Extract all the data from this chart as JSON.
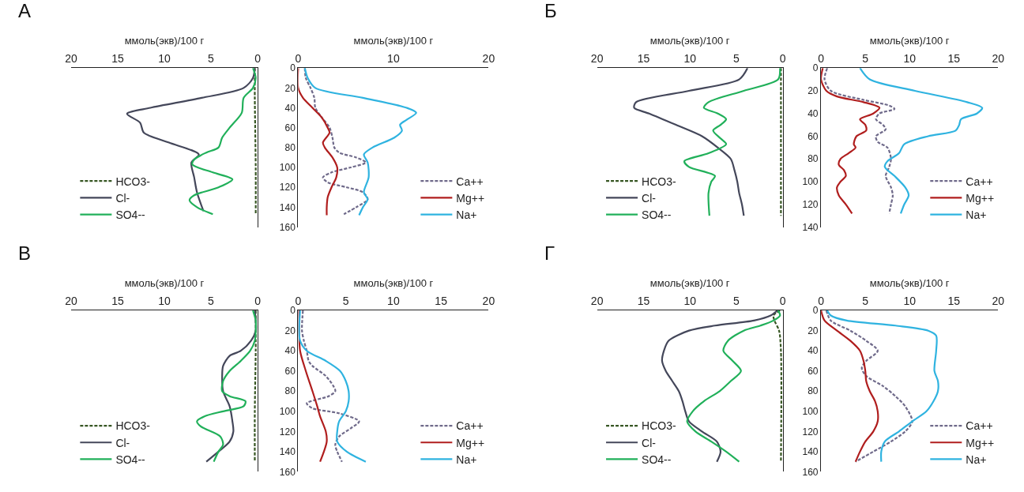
{
  "chart_data": [
    {
      "type": "line",
      "title": "А",
      "xlabel": "ммоль(экв)/100 г",
      "xlim": [
        20,
        0
      ],
      "xticks": [
        20,
        15,
        10,
        5,
        0
      ],
      "ylim": [
        160,
        0
      ],
      "yticks": [
        0,
        20,
        40,
        60,
        80,
        100,
        120,
        140,
        160
      ],
      "tick_labels": "x",
      "legend": "bottom left",
      "series": [
        {
          "name": "HCO3-",
          "color": "#375623",
          "line_style": "dashed",
          "x": [
            0.3,
            0.3,
            0.2,
            0.2
          ],
          "values": [
            0,
            30,
            100,
            147
          ]
        },
        {
          "name": "Cl-",
          "color": "#44475a",
          "line_style": "solid",
          "x": [
            0.3,
            0.5,
            1.5,
            6,
            11.5,
            14,
            12.6,
            12.2,
            9.5,
            6.3,
            7.1,
            6.8,
            6.5,
            5.8
          ],
          "values": [
            0,
            10,
            20,
            30,
            40,
            46,
            55,
            65,
            75,
            87,
            95,
            110,
            125,
            144
          ]
        },
        {
          "name": "SO4--",
          "color": "#21b05a",
          "line_style": "solid",
          "x": [
            0.5,
            0.2,
            0.5,
            1.5,
            1.7,
            3,
            3.8,
            4.2,
            5.5,
            6.8,
            7.0,
            4.8,
            2.7,
            4.2,
            6.8,
            7.3,
            6.5,
            4.8
          ],
          "values": [
            0,
            10,
            20,
            30,
            45,
            60,
            70,
            80,
            85,
            92,
            97,
            105,
            112,
            120,
            128,
            133,
            140,
            147
          ]
        }
      ]
    },
    {
      "type": "line",
      "xlabel": "ммоль(экв)/100 г",
      "xlim": [
        0,
        20
      ],
      "xticks": [
        0,
        10,
        20
      ],
      "ylim": [
        160,
        0
      ],
      "yticks": [
        0,
        20,
        40,
        60,
        80,
        100,
        120,
        140,
        160
      ],
      "legend": "bottom right",
      "series": [
        {
          "name": "Ca++",
          "color": "#6f6a8a",
          "line_style": "dashed",
          "x": [
            0.7,
            0.8,
            1.3,
            1.7,
            1.8,
            2.5,
            3.3,
            3.6,
            3.8,
            4.3,
            6.1,
            7.1,
            5.5,
            3.5,
            2.6,
            3.1,
            5.1,
            6.8,
            7.3,
            6.1,
            4.8
          ],
          "values": [
            0,
            10,
            20,
            30,
            40,
            50,
            60,
            70,
            80,
            85,
            90,
            95,
            100,
            105,
            110,
            115,
            120,
            125,
            132,
            140,
            147
          ]
        },
        {
          "name": "Mg++",
          "color": "#b01e1e",
          "line_style": "solid",
          "x": [
            0,
            0,
            0.5,
            1.5,
            2.5,
            3.1,
            3.3,
            2.6,
            2.8,
            3.6,
            4.1,
            4.0,
            3.5,
            3.1,
            3.0,
            3.0
          ],
          "values": [
            0,
            20,
            30,
            40,
            50,
            60,
            65,
            75,
            80,
            90,
            100,
            110,
            120,
            130,
            140,
            148
          ]
        },
        {
          "name": "Na+",
          "color": "#2fb3e0",
          "line_style": "solid",
          "x": [
            0.7,
            1.0,
            1.8,
            6.8,
            11.4,
            12.4,
            11.4,
            10.7,
            10.9,
            10.1,
            7.8,
            6.9,
            7.3,
            7.4,
            6.9,
            7.3,
            6.8,
            6.4
          ],
          "values": [
            0,
            10,
            20,
            30,
            40,
            45,
            52,
            57,
            63,
            70,
            80,
            87,
            95,
            110,
            125,
            132,
            140,
            148
          ]
        }
      ]
    },
    {
      "type": "line",
      "title": "Б",
      "xlabel": "ммоль(экв)/100 г",
      "xlim": [
        20,
        0
      ],
      "xticks": [
        20,
        15,
        10,
        5,
        0
      ],
      "ylim": [
        140,
        0
      ],
      "yticks": [
        0,
        20,
        40,
        60,
        80,
        100,
        120,
        140
      ],
      "tick_labels": "x",
      "legend": "bottom left",
      "series": [
        {
          "name": "HCO3-",
          "color": "#375623",
          "line_style": "dashed",
          "x": [
            0.2,
            0.2,
            0.2
          ],
          "values": [
            0,
            60,
            130
          ]
        },
        {
          "name": "Cl-",
          "color": "#44475a",
          "line_style": "solid",
          "x": [
            3.8,
            4.7,
            10.1,
            15.8,
            16,
            14.4,
            11.5,
            8.7,
            7.0,
            5.6,
            5.2,
            4.9,
            4.7,
            4.4,
            4.2
          ],
          "values": [
            0,
            10,
            20,
            30,
            35,
            40,
            50,
            60,
            70,
            80,
            90,
            100,
            110,
            120,
            130
          ]
        },
        {
          "name": "SO4--",
          "color": "#21b05a",
          "line_style": "solid",
          "x": [
            0.3,
            0.5,
            4.2,
            8.0,
            8.5,
            7.0,
            6.1,
            6.7,
            7.5,
            6.7,
            6.1,
            8.0,
            10.6,
            10.1,
            7.3,
            7.7,
            8.0,
            7.9
          ],
          "values": [
            0,
            10,
            20,
            30,
            35,
            40,
            45,
            50,
            55,
            62,
            67,
            75,
            82,
            87,
            95,
            100,
            110,
            130
          ]
        }
      ]
    },
    {
      "type": "line",
      "xlabel": "ммоль(экв)/100 г",
      "xlim": [
        0,
        20
      ],
      "xticks": [
        0,
        5,
        10,
        15,
        20
      ],
      "ylim": [
        140,
        0
      ],
      "yticks": [
        0,
        20,
        40,
        60,
        80,
        100,
        120,
        140
      ],
      "legend": "bottom right",
      "series": [
        {
          "name": "Ca++",
          "color": "#6f6a8a",
          "line_style": "dashed",
          "x": [
            0.7,
            0.4,
            1.1,
            4.8,
            7.7,
            8.3,
            6.6,
            6.2,
            7.0,
            7.3,
            6.2,
            6.4,
            7.5,
            7.9,
            7.7,
            7.3,
            7.9,
            8.1,
            7.9,
            7.7
          ],
          "values": [
            0,
            10,
            20,
            28,
            33,
            36,
            40,
            45,
            50,
            54,
            60,
            65,
            70,
            80,
            87,
            95,
            105,
            112,
            120,
            128
          ]
        },
        {
          "name": "Mg++",
          "color": "#b01e1e",
          "line_style": "solid",
          "x": [
            0.2,
            0,
            0.6,
            1.8,
            4.8,
            6.6,
            5.9,
            4.4,
            5.0,
            5.1,
            4.0,
            3.7,
            3.9,
            3.1,
            2.2,
            2.0,
            2.6,
            2.8,
            2.2,
            1.8,
            2.0,
            2.8,
            3.5
          ],
          "values": [
            0,
            10,
            20,
            25,
            30,
            35,
            40,
            45,
            50,
            55,
            60,
            67,
            70,
            75,
            80,
            85,
            90,
            95,
            100,
            105,
            112,
            120,
            128
          ]
        },
        {
          "name": "Na+",
          "color": "#2fb3e0",
          "line_style": "solid",
          "x": [
            4.4,
            5.5,
            10.6,
            16.5,
            18.2,
            17.6,
            15.8,
            15.6,
            15.2,
            12.1,
            9.4,
            8.8,
            7.5,
            7.2,
            8.3,
            9.5,
            9.9,
            9.4,
            9.0
          ],
          "values": [
            0,
            10,
            20,
            30,
            35,
            40,
            45,
            50,
            55,
            60,
            67,
            75,
            82,
            87,
            95,
            105,
            112,
            120,
            128
          ]
        }
      ]
    },
    {
      "type": "line",
      "title": "В",
      "xlabel": "ммоль(экв)/100 г",
      "xlim": [
        20,
        0
      ],
      "xticks": [
        20,
        15,
        10,
        5,
        0
      ],
      "ylim": [
        160,
        0
      ],
      "yticks": [
        0,
        20,
        40,
        60,
        80,
        100,
        120,
        140,
        160
      ],
      "tick_labels": "x",
      "legend": "bottom left",
      "series": [
        {
          "name": "HCO3-",
          "color": "#375623",
          "line_style": "dashed",
          "x": [
            0.2,
            0.2,
            0.3,
            0.3
          ],
          "values": [
            0,
            40,
            100,
            150
          ]
        },
        {
          "name": "Cl-",
          "color": "#44475a",
          "line_style": "solid",
          "x": [
            0.3,
            0.2,
            0.2,
            0.7,
            1.8,
            3.0,
            3.7,
            3.8,
            3.7,
            3.0,
            2.7,
            2.6,
            3.0,
            4.2,
            5.5
          ],
          "values": [
            0,
            10,
            20,
            30,
            40,
            45,
            55,
            65,
            80,
            95,
            110,
            120,
            130,
            140,
            150
          ]
        },
        {
          "name": "SO4--",
          "color": "#21b05a",
          "line_style": "solid",
          "x": [
            0.5,
            0.2,
            0.2,
            0.3,
            0.8,
            1.8,
            3.0,
            3.7,
            3.8,
            3.0,
            1.3,
            1.5,
            3.7,
            5.7,
            6.5,
            6.1,
            4.0,
            3.7,
            4.2,
            4.7
          ],
          "values": [
            0,
            10,
            20,
            30,
            40,
            50,
            60,
            70,
            80,
            85,
            90,
            95,
            100,
            105,
            110,
            115,
            125,
            133,
            140,
            150
          ]
        }
      ]
    },
    {
      "type": "line",
      "xlabel": "ммоль(экв)/100 г",
      "xlim": [
        0,
        20
      ],
      "xticks": [
        0,
        5,
        10,
        15,
        20
      ],
      "ylim": [
        160,
        0
      ],
      "yticks": [
        0,
        20,
        40,
        60,
        80,
        100,
        120,
        140,
        160
      ],
      "legend": "bottom right",
      "series": [
        {
          "name": "Ca++",
          "color": "#6f6a8a",
          "line_style": "dashed",
          "x": [
            0.5,
            0.4,
            0.6,
            0.9,
            1.1,
            1.5,
            2.9,
            3.7,
            3.9,
            3.2,
            0.9,
            1.5,
            4.3,
            6.4,
            5.5,
            4.3,
            3.9,
            4.1,
            4.6
          ],
          "values": [
            0,
            20,
            30,
            40,
            50,
            55,
            65,
            75,
            80,
            85,
            92,
            97,
            102,
            110,
            117,
            125,
            133,
            140,
            150
          ]
        },
        {
          "name": "Mg++",
          "color": "#b01e1e",
          "line_style": "solid",
          "x": [
            0.1,
            0.1,
            0.2,
            0.8,
            1.5,
            2.0,
            2.3,
            2.9,
            3.0,
            2.7,
            2.3
          ],
          "values": [
            0,
            20,
            40,
            60,
            80,
            95,
            105,
            120,
            130,
            140,
            150
          ]
        },
        {
          "name": "Na+",
          "color": "#2fb3e0",
          "line_style": "solid",
          "x": [
            0.2,
            0.1,
            0.2,
            0.9,
            2.9,
            4.4,
            5.0,
            5.3,
            5.3,
            5.0,
            4.3,
            4.1,
            4.1,
            5.1,
            7.1
          ],
          "values": [
            0,
            20,
            30,
            40,
            50,
            60,
            70,
            80,
            90,
            100,
            110,
            120,
            130,
            140,
            150
          ]
        }
      ]
    },
    {
      "type": "line",
      "title": "Г",
      "xlabel": "ммоль(экв)/100 г",
      "xlim": [
        20,
        0
      ],
      "xticks": [
        20,
        15,
        10,
        5,
        0
      ],
      "ylim": [
        160,
        0
      ],
      "yticks": [
        0,
        20,
        40,
        60,
        80,
        100,
        120,
        140,
        160
      ],
      "tick_labels": "x",
      "legend": "bottom left",
      "series": [
        {
          "name": "HCO3-",
          "color": "#375623",
          "line_style": "dashed",
          "x": [
            0.3,
            1.0,
            0.9,
            0.4,
            0.2,
            0.2
          ],
          "values": [
            0,
            5,
            10,
            20,
            40,
            150
          ]
        },
        {
          "name": "Cl-",
          "color": "#44475a",
          "line_style": "solid",
          "x": [
            0.6,
            1.3,
            3.1,
            7.3,
            10.1,
            12.3,
            12.8,
            13.0,
            12.6,
            11.9,
            11.2,
            10.8,
            10.5,
            10.1,
            8.7,
            7.1,
            6.7,
            7.1
          ],
          "values": [
            0,
            5,
            10,
            15,
            20,
            30,
            40,
            50,
            60,
            70,
            80,
            90,
            100,
            110,
            120,
            130,
            140,
            150
          ]
        },
        {
          "name": "SO4--",
          "color": "#21b05a",
          "line_style": "solid",
          "x": [
            0.5,
            0.3,
            1.0,
            2.4,
            4.2,
            5.9,
            6.4,
            5.4,
            4.5,
            5.6,
            6.8,
            8.5,
            9.7,
            10.3,
            9.4,
            7.7,
            6.1,
            4.7
          ],
          "values": [
            0,
            5,
            10,
            15,
            20,
            30,
            40,
            50,
            60,
            70,
            80,
            90,
            100,
            110,
            120,
            130,
            140,
            150
          ]
        }
      ]
    },
    {
      "type": "line",
      "xlabel": "ммоль(экв)/100 г",
      "xlim": [
        0,
        20
      ],
      "xticks": [
        0,
        5,
        10,
        15,
        20
      ],
      "ylim": [
        160,
        0
      ],
      "yticks": [
        0,
        20,
        40,
        60,
        80,
        100,
        120,
        140,
        160
      ],
      "legend": "bottom right",
      "series": [
        {
          "name": "Ca++",
          "color": "#6f6a8a",
          "line_style": "dashed",
          "x": [
            0.6,
            1.1,
            3.3,
            5.1,
            6.4,
            5.1,
            4.6,
            5.1,
            7.0,
            8.4,
            9.5,
            10.3,
            9.5,
            7.9,
            5.9,
            3.9
          ],
          "values": [
            0,
            10,
            20,
            30,
            40,
            50,
            57,
            65,
            75,
            85,
            95,
            110,
            120,
            130,
            140,
            150
          ]
        },
        {
          "name": "Mg++",
          "color": "#b01e1e",
          "line_style": "solid",
          "x": [
            0,
            0.4,
            1.8,
            3.3,
            4.4,
            4.8,
            5.0,
            5.1,
            5.5,
            6.1,
            6.4,
            6.4,
            5.9,
            5.0,
            4.4,
            3.9
          ],
          "values": [
            0,
            10,
            20,
            30,
            40,
            50,
            60,
            70,
            80,
            90,
            100,
            110,
            120,
            130,
            140,
            150
          ]
        },
        {
          "name": "Na+",
          "color": "#2fb3e0",
          "line_style": "solid",
          "x": [
            0.7,
            1.1,
            2.9,
            8.4,
            12.1,
            13.0,
            13.0,
            12.8,
            13.2,
            13.2,
            12.7,
            11.9,
            10.3,
            8.8,
            7.2,
            6.8,
            6.8
          ],
          "values": [
            0,
            5,
            10,
            15,
            20,
            25,
            40,
            60,
            70,
            80,
            90,
            100,
            110,
            120,
            130,
            140,
            150
          ]
        }
      ]
    }
  ]
}
